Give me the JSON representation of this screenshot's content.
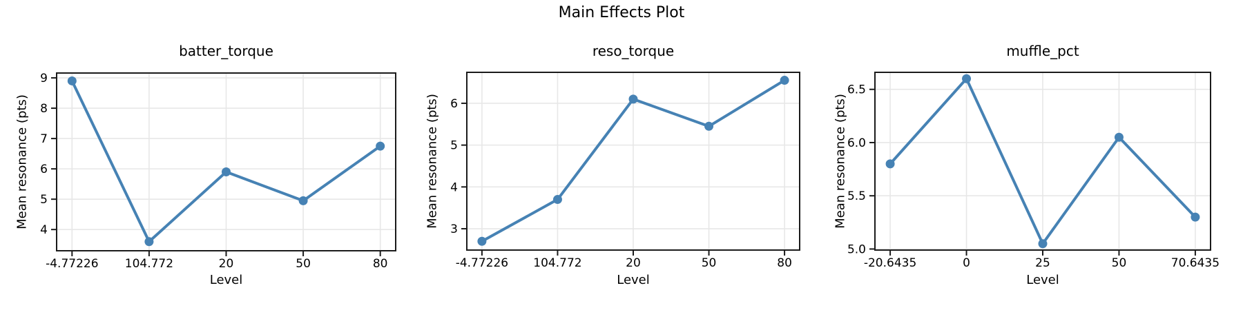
{
  "page": {
    "title": "Main Effects Plot"
  },
  "style": {
    "line_color": "#4682B4",
    "grid_color": "#e7e7e7",
    "spine_color": "#1a1a1a",
    "text_color": "#000000",
    "background": "#ffffff"
  },
  "chart_data": [
    {
      "type": "line",
      "title": "batter_torque",
      "xlabel": "Level",
      "ylabel": "Mean resonance (pts)",
      "categories": [
        "-4.77226",
        "104.772",
        "20",
        "50",
        "80"
      ],
      "values": [
        8.9,
        3.6,
        5.9,
        4.95,
        6.75
      ],
      "ytick_values": [
        4,
        5,
        6,
        7,
        8,
        9
      ],
      "ytick_labels": [
        "4",
        "5",
        "6",
        "7",
        "8",
        "9"
      ],
      "ylim": [
        3.3,
        9.16
      ],
      "grid": true,
      "legend": "none",
      "marker": "circle"
    },
    {
      "type": "line",
      "title": "reso_torque",
      "xlabel": "Level",
      "ylabel": "Mean resonance (pts)",
      "categories": [
        "-4.77226",
        "104.772",
        "20",
        "50",
        "80"
      ],
      "values": [
        2.7,
        3.7,
        6.1,
        5.45,
        6.55
      ],
      "ytick_values": [
        3,
        4,
        5,
        6
      ],
      "ytick_labels": [
        "3",
        "4",
        "5",
        "6"
      ],
      "ylim": [
        2.49,
        6.74
      ],
      "grid": true,
      "legend": "none",
      "marker": "circle"
    },
    {
      "type": "line",
      "title": "muffle_pct",
      "xlabel": "Level",
      "ylabel": "Mean resonance (pts)",
      "categories": [
        "-20.6435",
        "0",
        "25",
        "50",
        "70.6435"
      ],
      "values": [
        5.8,
        6.6,
        5.05,
        6.05,
        5.3
      ],
      "ytick_values": [
        5.0,
        5.5,
        6.0,
        6.5
      ],
      "ytick_labels": [
        "5.0",
        "5.5",
        "6.0",
        "6.5"
      ],
      "ylim": [
        4.99,
        6.66
      ],
      "grid": true,
      "legend": "none",
      "marker": "circle"
    }
  ]
}
